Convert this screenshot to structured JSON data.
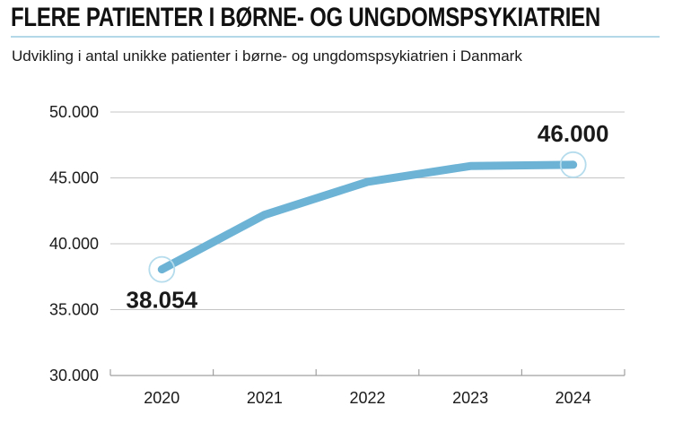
{
  "page": {
    "title": "FLERE PATIENTER I BØRNE- OG UNGDOMSPSYKIATRIEN",
    "subtitle": "Udvikling i antal unikke patienter i børne- og ungdomspsykiatrien i Danmark"
  },
  "colors": {
    "line": "#6db3d6",
    "endpoint_ring": "#b5dcec",
    "title_underline": "#b3d9e8",
    "gridline": "#c4c4c4",
    "axis": "#a0a0a0",
    "text": "#1a1a1a",
    "title_text": "#111111",
    "background": "#ffffff"
  },
  "chart_data": {
    "type": "line",
    "title": "FLERE PATIENTER I BØRNE- OG UNGDOMSPSYKIATRIEN",
    "subtitle": "Udvikling i antal unikke patienter i børne- og ungdomspsykiatrien i Danmark",
    "categories": [
      "2020",
      "2021",
      "2022",
      "2023",
      "2024"
    ],
    "values": [
      38054,
      42200,
      44700,
      45900,
      46000
    ],
    "values_estimated": [
      false,
      true,
      true,
      true,
      false
    ],
    "ylim": [
      30000,
      50000
    ],
    "ytick_values": [
      50000,
      45000,
      40000,
      35000,
      30000
    ],
    "ytick_labels": [
      "50.000",
      "45.000",
      "40.000",
      "35.000",
      "30.000"
    ],
    "grid": "horizontal",
    "legend": "none",
    "point_labels": [
      {
        "index": 0,
        "text": "38.054",
        "position": "below"
      },
      {
        "index": 4,
        "text": "46.000",
        "position": "above"
      }
    ]
  }
}
